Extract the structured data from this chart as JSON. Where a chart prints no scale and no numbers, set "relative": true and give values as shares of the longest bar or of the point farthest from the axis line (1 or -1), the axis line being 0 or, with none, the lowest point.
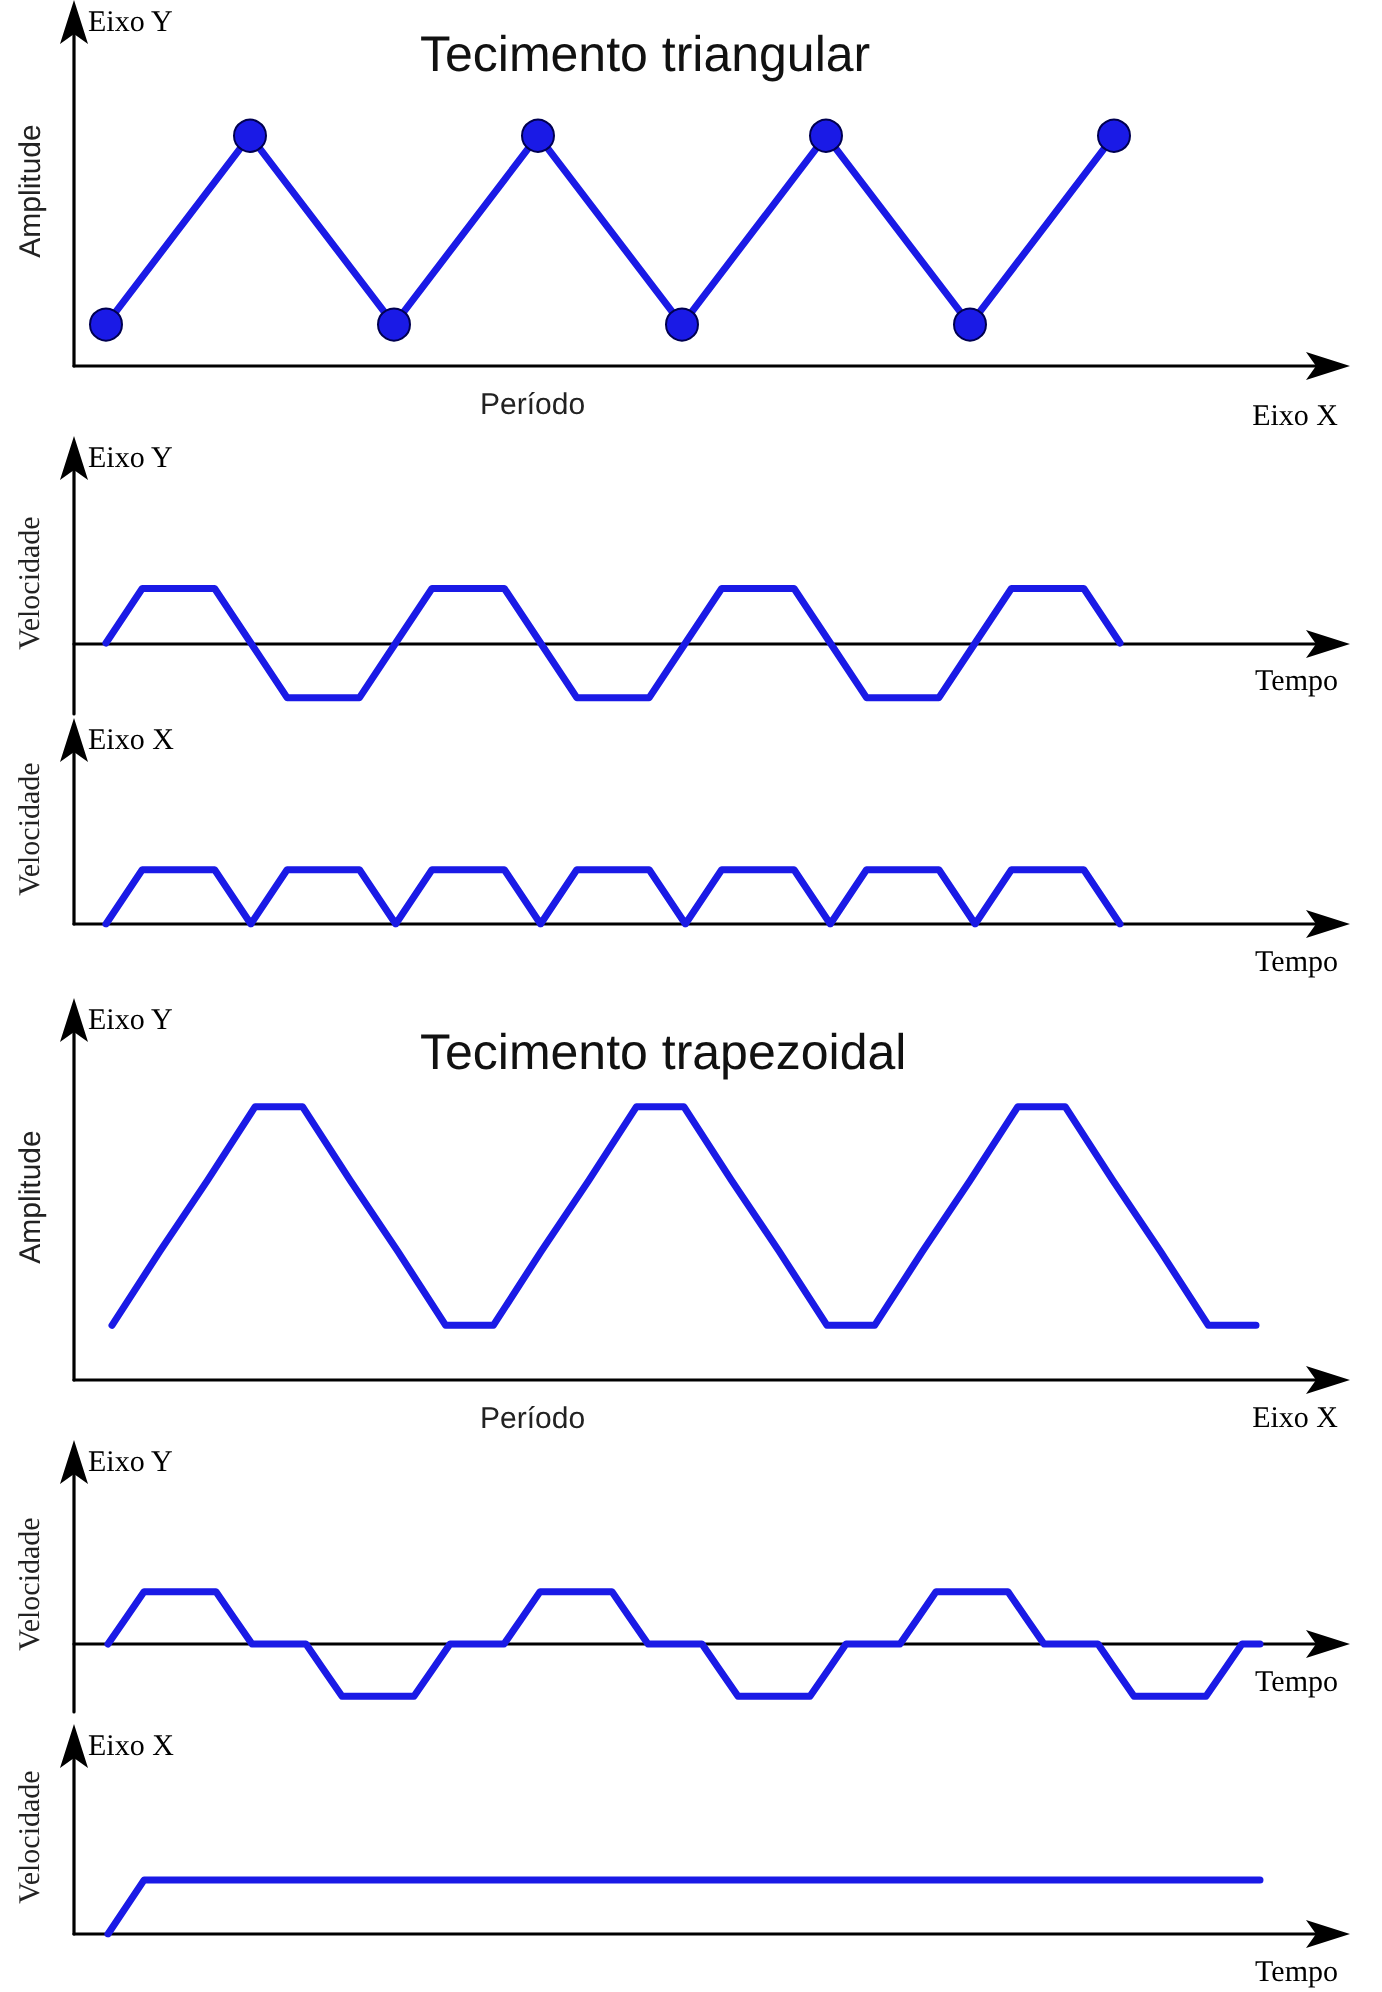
{
  "chart_data": [
    {
      "type": "line",
      "title": "Tecimento triangular",
      "ylabel": "Amplitude",
      "xlabel": "Eixo X",
      "annotations": [
        "Eixo Y",
        "Período"
      ],
      "relative": true,
      "marker": "circle",
      "line_style": "solid",
      "categories": [
        null,
        null,
        null,
        null,
        null,
        null,
        null,
        null
      ],
      "series": [
        {
          "color": "#1a1ae6",
          "values": [
            0.18,
            1,
            0.18,
            1,
            0.18,
            1,
            0.18,
            1
          ]
        }
      ]
    },
    {
      "type": "line",
      "ylabel": "Velocidade",
      "xlabel": "Tempo",
      "annotations": [
        "Eixo Y"
      ],
      "relative": true,
      "marker": "none",
      "line_style": "solid",
      "categories": [
        null,
        null,
        null,
        null,
        null,
        null,
        null,
        null,
        null,
        null,
        null,
        null,
        null,
        null,
        null,
        null,
        null,
        null,
        null,
        null,
        null,
        null,
        null,
        null,
        null,
        null,
        null,
        null,
        null
      ],
      "series": [
        {
          "color": "#1a1ae6",
          "values": [
            0,
            1,
            1,
            1,
            0,
            -1,
            -1,
            -1,
            0,
            1,
            1,
            1,
            0,
            -1,
            -1,
            -1,
            0,
            1,
            1,
            1,
            0,
            -1,
            -1,
            -1,
            0,
            1,
            1,
            1,
            0
          ]
        }
      ]
    },
    {
      "type": "line",
      "ylabel": "Velocidade",
      "xlabel": "Tempo",
      "annotations": [
        "Eixo X"
      ],
      "relative": true,
      "marker": "none",
      "line_style": "solid",
      "categories": [
        null,
        null,
        null,
        null,
        null,
        null,
        null,
        null,
        null,
        null,
        null,
        null,
        null,
        null,
        null,
        null,
        null,
        null,
        null,
        null,
        null,
        null,
        null,
        null,
        null,
        null,
        null,
        null,
        null
      ],
      "series": [
        {
          "color": "#1a1ae6",
          "values": [
            0,
            1,
            1,
            1,
            0,
            1,
            1,
            1,
            0,
            1,
            1,
            1,
            0,
            1,
            1,
            1,
            0,
            1,
            1,
            1,
            0,
            1,
            1,
            1,
            0,
            1,
            1,
            1,
            0
          ]
        }
      ]
    },
    {
      "type": "line",
      "title": "Tecimento trapezoidal",
      "ylabel": "Amplitude",
      "xlabel": "Eixo X",
      "annotations": [
        "Eixo Y",
        "Período"
      ],
      "relative": true,
      "marker": "none",
      "line_style": "solid",
      "categories": [
        null,
        null,
        null,
        null,
        null,
        null,
        null,
        null,
        null,
        null,
        null,
        null,
        null,
        null,
        null,
        null,
        null,
        null,
        null,
        null,
        null,
        null,
        null,
        null,
        null
      ],
      "series": [
        {
          "color": "#1a1ae6",
          "values": [
            0.2,
            0.47,
            0.73,
            1,
            1,
            0.73,
            0.47,
            0.2,
            0.2,
            0.47,
            0.73,
            1,
            1,
            0.73,
            0.47,
            0.2,
            0.2,
            0.47,
            0.73,
            1,
            1,
            0.73,
            0.47,
            0.2,
            0.2
          ]
        }
      ]
    },
    {
      "type": "line",
      "ylabel": "Velocidade",
      "xlabel": "Tempo",
      "annotations": [
        "Eixo Y"
      ],
      "relative": true,
      "marker": "none",
      "line_style": "solid",
      "categories": [
        null,
        null,
        null,
        null,
        null,
        null,
        null,
        null,
        null,
        null,
        null,
        null,
        null,
        null,
        null,
        null,
        null,
        null,
        null,
        null,
        null,
        null,
        null,
        null,
        null,
        null,
        null,
        null,
        null,
        null,
        null,
        null,
        null,
        null,
        null,
        null,
        null,
        null,
        null,
        null,
        null,
        null,
        null,
        null,
        null,
        null,
        null,
        null,
        null,
        null,
        null,
        null,
        null,
        null,
        null,
        null,
        null,
        null,
        null,
        null,
        null,
        null,
        null,
        null,
        null
      ],
      "series": [
        {
          "color": "#1a1ae6",
          "values": [
            0,
            0.5,
            1,
            1,
            1,
            1,
            1,
            0.5,
            0,
            0,
            0,
            0,
            -0.5,
            -1,
            -1,
            -1,
            -1,
            -1,
            -0.5,
            0,
            0,
            0,
            0,
            0.5,
            1,
            1,
            1,
            1,
            1,
            0.5,
            0,
            0,
            0,
            0,
            -0.5,
            -1,
            -1,
            -1,
            -1,
            -1,
            -0.5,
            0,
            0,
            0,
            0,
            0.5,
            1,
            1,
            1,
            1,
            1,
            0.5,
            0,
            0,
            0,
            0,
            -0.5,
            -1,
            -1,
            -1,
            -1,
            -1,
            -0.5,
            0,
            0
          ]
        }
      ]
    },
    {
      "type": "line",
      "ylabel": "Velocidade",
      "xlabel": "Tempo",
      "annotations": [
        "Eixo X"
      ],
      "relative": true,
      "marker": "none",
      "line_style": "solid",
      "categories": [
        null,
        null,
        null,
        null,
        null,
        null,
        null,
        null,
        null,
        null,
        null,
        null,
        null,
        null,
        null,
        null,
        null,
        null,
        null,
        null,
        null,
        null,
        null,
        null,
        null,
        null,
        null,
        null,
        null,
        null,
        null,
        null,
        null
      ],
      "series": [
        {
          "color": "#1a1ae6",
          "values": [
            0,
            1,
            1,
            1,
            1,
            1,
            1,
            1,
            1,
            1,
            1,
            1,
            1,
            1,
            1,
            1,
            1,
            1,
            1,
            1,
            1,
            1,
            1,
            1,
            1,
            1,
            1,
            1,
            1,
            1,
            1,
            1,
            1
          ]
        }
      ]
    }
  ]
}
